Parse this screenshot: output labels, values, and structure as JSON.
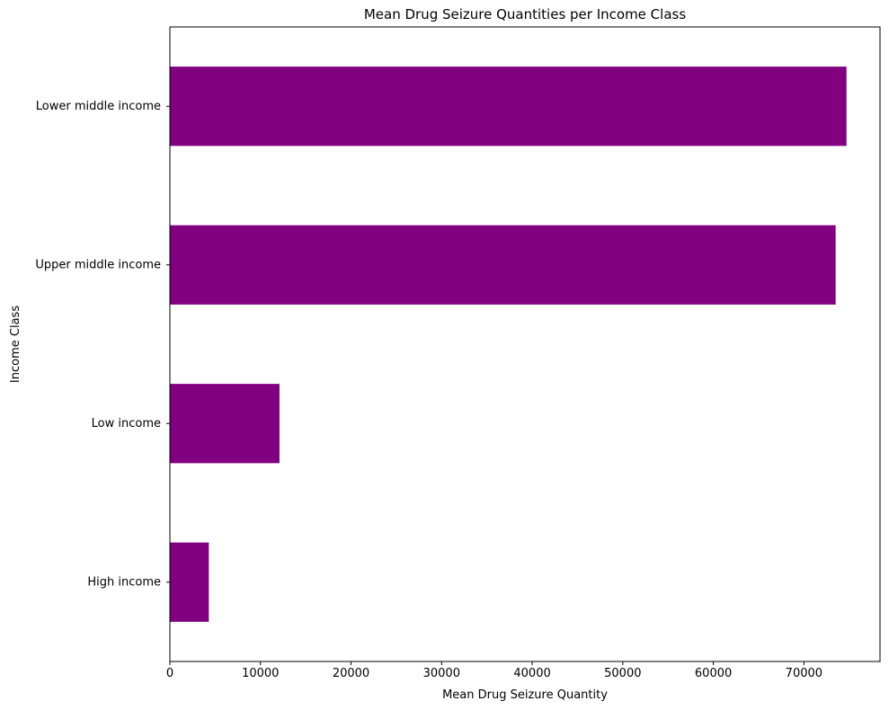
{
  "chart_data": {
    "type": "bar",
    "orientation": "horizontal",
    "title": "Mean Drug Seizure Quantities per Income Class",
    "xlabel": "Mean Drug Seizure Quantity",
    "ylabel": "Income Class",
    "categories": [
      "Lower middle income",
      "Upper middle income",
      "Low income",
      "High income"
    ],
    "values": [
      74700,
      73500,
      12100,
      4300
    ],
    "xlim": [
      0,
      78400
    ],
    "xticks": [
      0,
      10000,
      20000,
      30000,
      40000,
      50000,
      60000,
      70000
    ],
    "xtick_labels": [
      "0",
      "10000",
      "20000",
      "30000",
      "40000",
      "50000",
      "60000",
      "70000"
    ],
    "bar_color": "#800080",
    "grid": false,
    "legend": false
  }
}
